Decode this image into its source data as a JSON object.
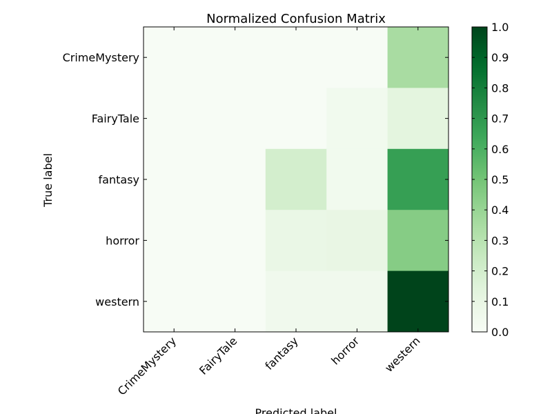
{
  "chart_data": {
    "type": "heatmap",
    "title": "Normalized Confusion Matrix",
    "xlabel": "Predicted label",
    "ylabel": "True label",
    "x_categories": [
      "CrimeMystery",
      "FairyTale",
      "fantasy",
      "horror",
      "western"
    ],
    "y_categories": [
      "CrimeMystery",
      "FairyTale",
      "fantasy",
      "horror",
      "western"
    ],
    "values": [
      [
        0.0,
        0.0,
        0.0,
        0.0,
        0.35
      ],
      [
        0.0,
        0.0,
        0.0,
        0.04,
        0.13
      ],
      [
        0.0,
        0.0,
        0.2,
        0.04,
        0.67
      ],
      [
        0.0,
        0.0,
        0.09,
        0.1,
        0.45
      ],
      [
        0.0,
        0.0,
        0.05,
        0.05,
        1.0
      ]
    ],
    "colorbar": {
      "range": [
        0.0,
        1.0
      ],
      "ticks": [
        "0.0",
        "0.1",
        "0.2",
        "0.3",
        "0.4",
        "0.5",
        "0.6",
        "0.7",
        "0.8",
        "0.9",
        "1.0"
      ],
      "colormap": "Greens",
      "low_color": "#f7fcf5",
      "high_color": "#00441b"
    },
    "grid": false
  }
}
